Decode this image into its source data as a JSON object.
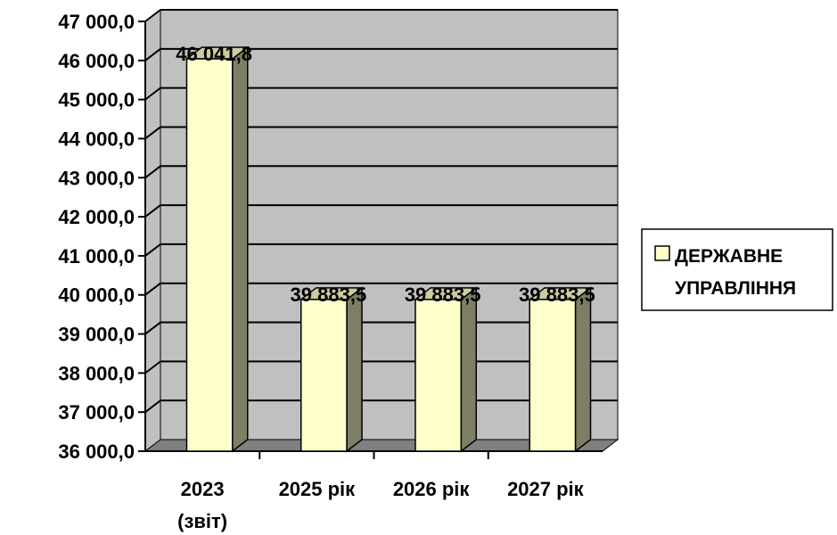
{
  "chart_data": {
    "type": "bar",
    "categories": [
      [
        "2023",
        "(звіт)"
      ],
      [
        "2025 рік"
      ],
      [
        "2026 рік"
      ],
      [
        "2027 рік"
      ]
    ],
    "series": [
      {
        "name": [
          "ДЕРЖАВНЕ",
          "УПРАВЛІННЯ"
        ],
        "values": [
          46041.8,
          39883.5,
          39883.5,
          39883.5
        ]
      }
    ],
    "data_labels": [
      "46 041,8",
      "39 883,5",
      "39 883,5",
      "39 883,5"
    ],
    "y_ticks": [
      "36 000,0",
      "37 000,0",
      "38 000,0",
      "39 000,0",
      "40 000,0",
      "41 000,0",
      "42 000,0",
      "43 000,0",
      "44 000,0",
      "45 000,0",
      "46 000,0",
      "47 000,0"
    ],
    "ylim": [
      36000,
      47000
    ],
    "grid": true,
    "legend_position": "right",
    "title": "",
    "xlabel": "",
    "ylabel": "",
    "colors": {
      "bar_front": "#FFFFCC",
      "bar_side": "#7E7E66",
      "bar_top": "#CCCCA3",
      "plot_wall": "#C0C0C0",
      "plot_floor": "#808080",
      "gridline": "#000000"
    }
  }
}
